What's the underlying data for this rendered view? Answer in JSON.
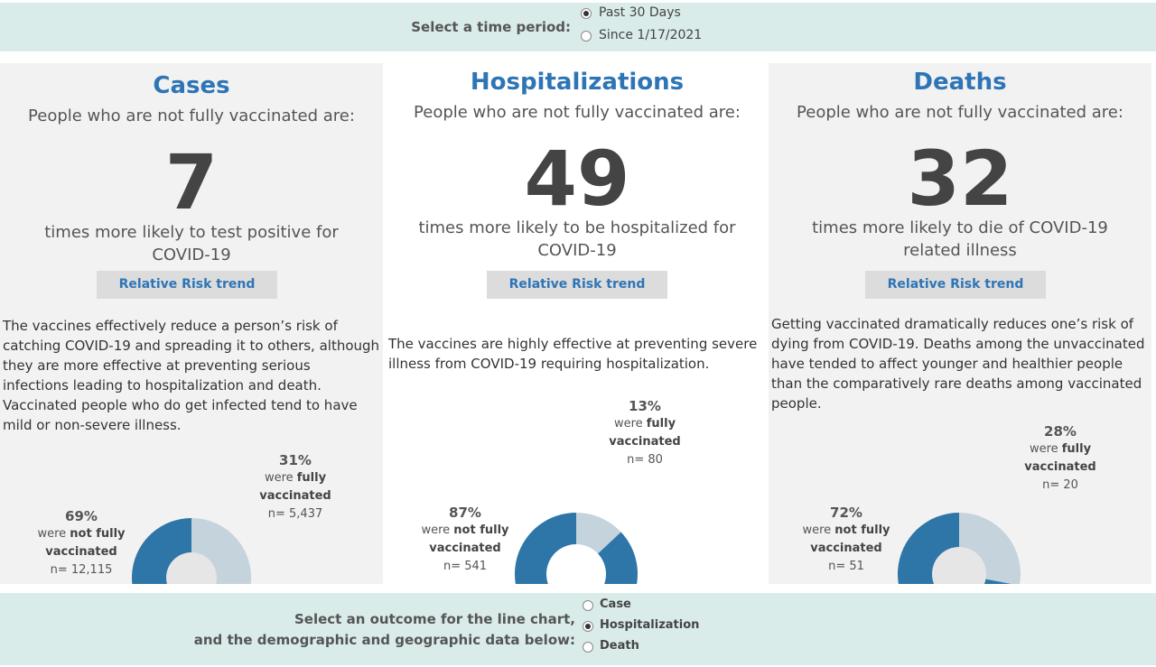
{
  "time_period": {
    "label": "Select a time period:",
    "options": [
      "Past 30 Days",
      "Since 1/17/2021"
    ],
    "selected": 0
  },
  "panels": [
    {
      "title": "Cases",
      "intro": "People who are not fully vaccinated are:",
      "multiplier": 7,
      "outcome": "times more likely to test positive for COVID-19",
      "button": "Relative Risk trend",
      "description": "The vaccines effectively reduce a person’s risk of catching COVID-19 and spreading it to others, although they are more effective at preventing serious infections leading to hospitalization and death. Vaccinated people who do get infected tend to have mild or non-severe illness.",
      "donut": {
        "values": [
          69,
          31
        ],
        "value_labels": [
          "69%",
          "31%"
        ],
        "colors": [
          "#2e75a8",
          "#c4d3dc"
        ],
        "hole_color": "#e6e6e6",
        "captions": [
          {
            "lead": "were",
            "bold": "not fully vaccinated"
          },
          {
            "lead": "were",
            "bold": "fully vaccinated"
          }
        ],
        "n_labels": [
          "n= 12,115",
          "n= 5,437"
        ]
      }
    },
    {
      "title": "Hospitalizations",
      "intro": "People who are not fully vaccinated are:",
      "multiplier": 49,
      "outcome": "times more likely to be hospitalized for COVID-19",
      "button": "Relative Risk trend",
      "description": "The vaccines are highly effective at preventing severe illness from COVID-19 requiring hospitalization.",
      "donut": {
        "values": [
          87,
          13
        ],
        "value_labels": [
          "87%",
          "13%"
        ],
        "colors": [
          "#2e75a8",
          "#c4d3dc"
        ],
        "hole_color": "#ffffff",
        "captions": [
          {
            "lead": "were",
            "bold": "not fully vaccinated"
          },
          {
            "lead": "were",
            "bold": "fully vaccinated"
          }
        ],
        "n_labels": [
          "n= 541",
          "n= 80"
        ]
      }
    },
    {
      "title": "Deaths",
      "intro": "People who are not fully vaccinated are:",
      "multiplier": 32,
      "outcome": "times more likely to die of COVID-19 related illness",
      "button": "Relative Risk trend",
      "description": "Getting vaccinated dramatically reduces one’s risk of dying from COVID-19. Deaths among the unvaccinated have tended to affect younger and healthier people than the comparatively rare deaths among vaccinated people.",
      "donut": {
        "values": [
          72,
          28
        ],
        "value_labels": [
          "72%",
          "28%"
        ],
        "colors": [
          "#2e75a8",
          "#c4d3dc"
        ],
        "hole_color": "#e6e6e6",
        "captions": [
          {
            "lead": "were",
            "bold": "not fully vaccinated"
          },
          {
            "lead": "were",
            "bold": "fully vaccinated"
          }
        ],
        "n_labels": [
          "n= 51",
          "n= 20"
        ]
      }
    }
  ],
  "outcome_selector": {
    "label_lines": [
      "Select an outcome for the line chart,",
      "and the demographic and geographic data below:"
    ],
    "options": [
      "Case",
      "Hospitalization",
      "Death"
    ],
    "selected": 1
  }
}
